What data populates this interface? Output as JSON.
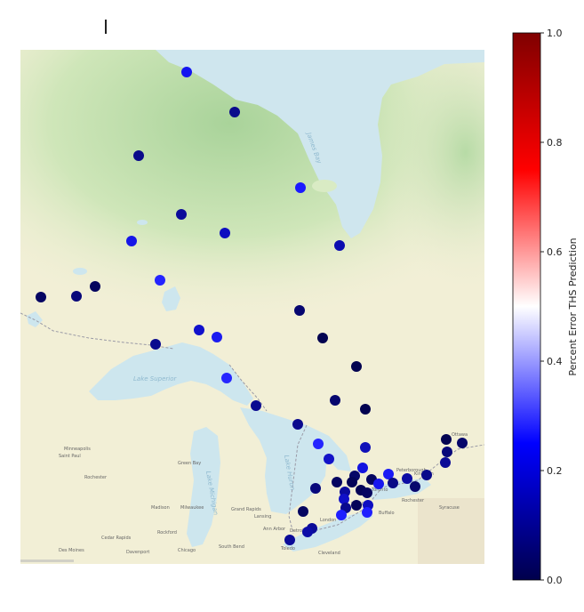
{
  "map": {
    "colorbar": {
      "label": "Percent Error THS Prediction",
      "ticks": [
        "0.0",
        "0.2",
        "0.4",
        "0.6",
        "0.8",
        "1.0"
      ],
      "tick_values": [
        0.0,
        0.2,
        0.4,
        0.6,
        0.8,
        1.0
      ],
      "colormap": "seismic",
      "stops": [
        "#00004c",
        "#0000ff",
        "#ffffff",
        "#ff0000",
        "#800000"
      ]
    },
    "place_labels": [
      "Ottawa",
      "Minneapolis",
      "Saint Paul",
      "Rochester",
      "Green Bay",
      "Madison",
      "Milwaukee",
      "Grand Rapids",
      "Lansing",
      "Detroit",
      "Cleveland",
      "Chicago",
      "Toledo",
      "Cedar Rapids",
      "Rockford",
      "Des Moines",
      "Davenport",
      "South Bend",
      "Toronto",
      "Buffalo",
      "Rochester",
      "Syracuse",
      "Kingston",
      "Hamilton",
      "London",
      "Ann Arbor",
      "Peterborough"
    ],
    "colors": {
      "water": "#cde6ee",
      "land": "#f3f1d8",
      "forest": "#c5e3b3",
      "border": "#9a9aa6"
    }
  }
}
